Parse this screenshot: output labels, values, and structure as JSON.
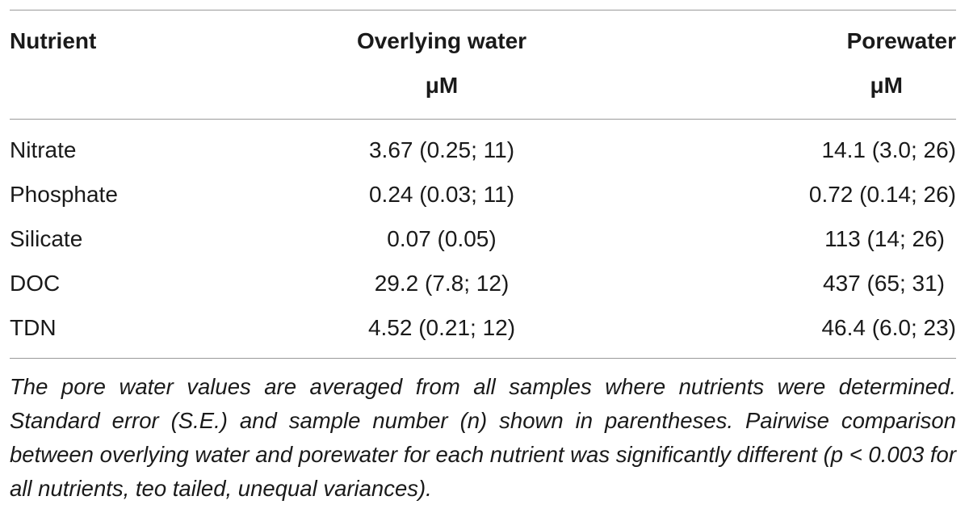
{
  "table": {
    "headers": {
      "col1": "Nutrient",
      "col2": "Overlying water",
      "col3": "Porewater",
      "col2_unit": "μM",
      "col3_unit": "μM"
    },
    "rows": [
      {
        "nutrient": "Nitrate",
        "overlying": "3.67 (0.25; 11)",
        "porewater": "14.1 (3.0; 26)"
      },
      {
        "nutrient": "Phosphate",
        "overlying": "0.24 (0.03; 11)",
        "porewater": "0.72 (0.14; 26)"
      },
      {
        "nutrient": "Silicate",
        "overlying": "0.07 (0.05)",
        "porewater": "113 (14; 26)"
      },
      {
        "nutrient": "DOC",
        "overlying": "29.2 (7.8; 12)",
        "porewater": "437 (65; 31)"
      },
      {
        "nutrient": "TDN",
        "overlying": "4.52 (0.21; 12)",
        "porewater": "46.4 (6.0; 23)"
      }
    ]
  },
  "footnote": "The pore water values are averaged from all samples where nutrients were determined. Standard error (S.E.) and sample number (n) shown in parentheses. Pairwise comparison between overlying water and porewater for each nutrient was significantly different (p < 0.003 for all nutrients, teo tailed, unequal variances)."
}
